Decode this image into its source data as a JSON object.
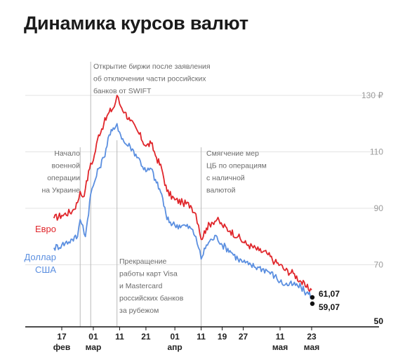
{
  "title": "Динамика курсов валют",
  "chart_data": {
    "type": "line",
    "title": "Динамика курсов валют",
    "ylim": [
      50,
      132
    ],
    "y_ticks": [
      {
        "value": 130,
        "label": "130 ₽"
      },
      {
        "value": 110,
        "label": "110"
      },
      {
        "value": 90,
        "label": "90"
      },
      {
        "value": 70,
        "label": "70"
      },
      {
        "value": 50,
        "label": "50"
      }
    ],
    "x_ticks": [
      {
        "date": "2022-02-17",
        "day": "17",
        "month": "фев"
      },
      {
        "date": "2022-03-01",
        "day": "01",
        "month": "мар"
      },
      {
        "date": "2022-03-11",
        "day": "11",
        "month": ""
      },
      {
        "date": "2022-03-21",
        "day": "21",
        "month": ""
      },
      {
        "date": "2022-04-01",
        "day": "01",
        "month": "апр"
      },
      {
        "date": "2022-04-11",
        "day": "11",
        "month": ""
      },
      {
        "date": "2022-04-19",
        "day": "19",
        "month": ""
      },
      {
        "date": "2022-04-27",
        "day": "27",
        "month": ""
      },
      {
        "date": "2022-05-11",
        "day": "11",
        "month": "мая"
      },
      {
        "date": "2022-05-23",
        "day": "23",
        "month": "мая"
      }
    ],
    "series": [
      {
        "name": "Евро",
        "color": "#e0262b",
        "end_label": "61,07",
        "points": [
          [
            "2022-02-14",
            86.5
          ],
          [
            "2022-02-17",
            87.5
          ],
          [
            "2022-02-21",
            89.0
          ],
          [
            "2022-02-23",
            92.0
          ],
          [
            "2022-02-24",
            96.0
          ],
          [
            "2022-02-25",
            94.0
          ],
          [
            "2022-02-26",
            97.0
          ],
          [
            "2022-02-28",
            106.0
          ],
          [
            "2022-03-01",
            107.0
          ],
          [
            "2022-03-03",
            116.0
          ],
          [
            "2022-03-05",
            120.0
          ],
          [
            "2022-03-07",
            124.0
          ],
          [
            "2022-03-09",
            126.0
          ],
          [
            "2022-03-10",
            130.0
          ],
          [
            "2022-03-11",
            127.0
          ],
          [
            "2022-03-13",
            124.0
          ],
          [
            "2022-03-15",
            121.0
          ],
          [
            "2022-03-18",
            117.0
          ],
          [
            "2022-03-21",
            112.0
          ],
          [
            "2022-03-23",
            113.0
          ],
          [
            "2022-03-25",
            108.0
          ],
          [
            "2022-03-27",
            104.0
          ],
          [
            "2022-03-29",
            96.0
          ],
          [
            "2022-04-01",
            93.0
          ],
          [
            "2022-04-04",
            92.0
          ],
          [
            "2022-04-07",
            91.0
          ],
          [
            "2022-04-09",
            88.0
          ],
          [
            "2022-04-10",
            84.0
          ],
          [
            "2022-04-11",
            79.0
          ],
          [
            "2022-04-13",
            83.0
          ],
          [
            "2022-04-15",
            85.0
          ],
          [
            "2022-04-17",
            86.0
          ],
          [
            "2022-04-19",
            84.0
          ],
          [
            "2022-04-22",
            82.0
          ],
          [
            "2022-04-25",
            80.0
          ],
          [
            "2022-04-27",
            78.0
          ],
          [
            "2022-04-29",
            77.0
          ],
          [
            "2022-05-03",
            75.0
          ],
          [
            "2022-05-06",
            74.0
          ],
          [
            "2022-05-09",
            71.0
          ],
          [
            "2022-05-11",
            70.0
          ],
          [
            "2022-05-13",
            68.0
          ],
          [
            "2022-05-16",
            67.0
          ],
          [
            "2022-05-19",
            64.0
          ],
          [
            "2022-05-21",
            62.0
          ],
          [
            "2022-05-23",
            61.07
          ]
        ]
      },
      {
        "name": "Доллар США",
        "color": "#5b8fe0",
        "end_label": "59,07",
        "points": [
          [
            "2022-02-14",
            76.0
          ],
          [
            "2022-02-17",
            77.0
          ],
          [
            "2022-02-21",
            79.0
          ],
          [
            "2022-02-23",
            80.0
          ],
          [
            "2022-02-24",
            86.0
          ],
          [
            "2022-02-25",
            84.0
          ],
          [
            "2022-02-26",
            80.0
          ],
          [
            "2022-02-28",
            95.0
          ],
          [
            "2022-03-01",
            98.0
          ],
          [
            "2022-03-03",
            104.0
          ],
          [
            "2022-03-05",
            108.0
          ],
          [
            "2022-03-07",
            116.0
          ],
          [
            "2022-03-09",
            118.0
          ],
          [
            "2022-03-10",
            120.0
          ],
          [
            "2022-03-11",
            117.0
          ],
          [
            "2022-03-13",
            113.0
          ],
          [
            "2022-03-15",
            112.0
          ],
          [
            "2022-03-18",
            108.0
          ],
          [
            "2022-03-21",
            103.0
          ],
          [
            "2022-03-23",
            104.0
          ],
          [
            "2022-03-25",
            99.0
          ],
          [
            "2022-03-27",
            95.0
          ],
          [
            "2022-03-29",
            86.0
          ],
          [
            "2022-04-01",
            84.0
          ],
          [
            "2022-04-04",
            84.0
          ],
          [
            "2022-04-07",
            83.0
          ],
          [
            "2022-04-09",
            80.0
          ],
          [
            "2022-04-10",
            76.0
          ],
          [
            "2022-04-11",
            72.0
          ],
          [
            "2022-04-13",
            77.0
          ],
          [
            "2022-04-15",
            79.0
          ],
          [
            "2022-04-17",
            80.0
          ],
          [
            "2022-04-19",
            77.0
          ],
          [
            "2022-04-22",
            75.0
          ],
          [
            "2022-04-25",
            72.0
          ],
          [
            "2022-04-27",
            71.0
          ],
          [
            "2022-04-29",
            70.0
          ],
          [
            "2022-05-03",
            69.0
          ],
          [
            "2022-05-06",
            68.0
          ],
          [
            "2022-05-09",
            66.0
          ],
          [
            "2022-05-11",
            64.0
          ],
          [
            "2022-05-13",
            63.0
          ],
          [
            "2022-05-16",
            63.0
          ],
          [
            "2022-05-19",
            62.0
          ],
          [
            "2022-05-21",
            60.0
          ],
          [
            "2022-05-23",
            59.07
          ]
        ]
      }
    ],
    "events": [
      {
        "date": "2022-02-24",
        "lines": [
          "Начало",
          "военной",
          "операции",
          "на Украине"
        ]
      },
      {
        "date": "2022-02-28",
        "lines": [
          "Открытие биржи после заявления",
          "об отключении части российских",
          "банков от SWIFT"
        ]
      },
      {
        "date": "2022-03-10",
        "lines": [
          "Прекращение",
          "работы карт Visa",
          "и Mastercard",
          "российских банков",
          "за рубежом"
        ]
      },
      {
        "date": "2022-04-11",
        "lines": [
          "Смягчение мер",
          "ЦБ по операциям",
          "с наличной",
          "валютой"
        ]
      }
    ]
  }
}
